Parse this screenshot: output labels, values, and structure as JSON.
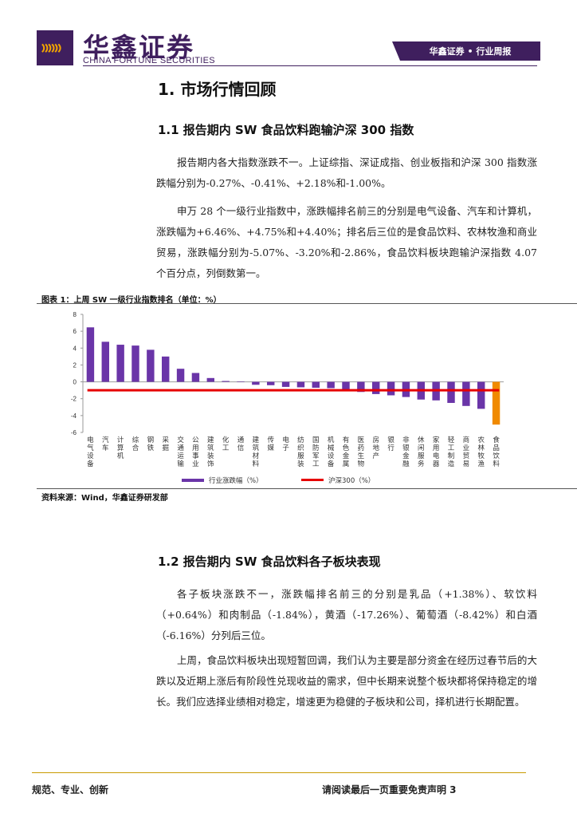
{
  "header": {
    "logo_text": "𐆕𐆕𐆕",
    "brand_cn": "华鑫证券",
    "brand_en": "CHINA FORTUNE SECURITIES",
    "tab_label": "华鑫证券 • 行业周报",
    "brand_color": "#3f1f5e",
    "accent_color": "#f2a400"
  },
  "section1": {
    "title": "1.  市场行情回顾"
  },
  "section1_1": {
    "title": "1.1  报告期内 SW 食品饮料跑输沪深 300 指数",
    "para1": "报告期内各大指数涨跌不一。上证综指、深证成指、创业板指和沪深 300 指数涨跌幅分别为-0.27%、-0.41%、+2.18%和-1.00%。",
    "para2": "申万 28 个一级行业指数中，涨跌幅排名前三的分别是电气设备、汽车和计算机，涨跌幅为+6.46%、+4.75%和+4.40%；排名后三位的是食品饮料、农林牧渔和商业贸易，涨跌幅分别为-5.07%、-3.20%和-2.86%，食品饮料板块跑输沪深指数 4.07 个百分点，列倒数第一。"
  },
  "figure": {
    "title": "图表 1：上周 SW 一级行业指数排名（单位：%）",
    "source": "资料来源：Wind，华鑫证券研发部"
  },
  "chart_data": {
    "type": "bar",
    "categories": [
      "电气设备",
      "汽车",
      "计算机",
      "综合",
      "钢铁",
      "采掘",
      "交通运输",
      "公用事业",
      "建筑装饰",
      "化工",
      "通信",
      "建筑材料",
      "传媒",
      "电子",
      "纺织服装",
      "国防军工",
      "机械设备",
      "有色金属",
      "医药生物",
      "房地产",
      "银行",
      "非银金融",
      "休闲服务",
      "家用电器",
      "轻工制造",
      "商业贸易",
      "农林牧渔",
      "食品饮料"
    ],
    "category_labels": [
      "电\n气\n设\n备",
      "汽\n车",
      "计\n算\n机",
      "综\n合",
      "钢\n铁",
      "采\n掘",
      "交\n通\n运\n输",
      "公\n用\n事\n业",
      "建\n筑\n装\n饰",
      "化\n工",
      "通\n信",
      "建\n筑\n材\n料",
      "传\n媒",
      "电\n子",
      "纺\n织\n服\n装",
      "国\n防\n军\n工",
      "机\n械\n设\n备",
      "有\n色\n金\n属",
      "医\n药\n生\n物",
      "房\n地\n产",
      "银\n行",
      "非\n银\n金\n融",
      "休\n闲\n服\n务",
      "家\n用\n电\n器",
      "轻\n工\n制\n造",
      "商\n业\n贸\n易",
      "农\n林\n牧\n渔",
      "食\n品\n饮\n料"
    ],
    "series": [
      {
        "name": "行业涨跌幅（%）",
        "color": "#6a35a8",
        "highlight_color": "#f08a00",
        "values": [
          6.46,
          4.75,
          4.4,
          4.3,
          3.8,
          3.0,
          1.55,
          1.05,
          0.45,
          0.1,
          0.05,
          -0.35,
          -0.4,
          -0.6,
          -0.65,
          -0.7,
          -0.75,
          -1.05,
          -1.2,
          -1.45,
          -1.6,
          -1.8,
          -2.1,
          -2.2,
          -2.5,
          -2.86,
          -3.2,
          -5.07
        ]
      },
      {
        "name": "沪深300（%）",
        "color": "#e60000",
        "value": -1.0
      }
    ],
    "yticks": [
      8,
      6,
      4,
      2,
      0,
      -2,
      -4,
      -6
    ],
    "ylim": [
      -6,
      8
    ]
  },
  "section1_2": {
    "title": "1.2  报告期内 SW 食品饮料各子板块表现",
    "para1": "各子板块涨跌不一，涨跌幅排名前三的分别是乳品（+1.38%）、软饮料（+0.64%）和肉制品（-1.84%），黄酒（-17.26%）、葡萄酒（-8.42%）和白酒（-6.16%）分列后三位。",
    "para2": "上周，食品饮料板块出现短暂回调，我们认为主要是部分资金在经历过春节后的大跌以及近期上涨后有阶段性兑现收益的需求，但中长期来说整个板块都将保持稳定的增长。我们应选择业绩相对稳定，增速更为稳健的子板块和公司，择机进行长期配置。"
  },
  "footer": {
    "left": "规范、专业、创新",
    "right": "请阅读最后一页重要免责声明 3"
  }
}
